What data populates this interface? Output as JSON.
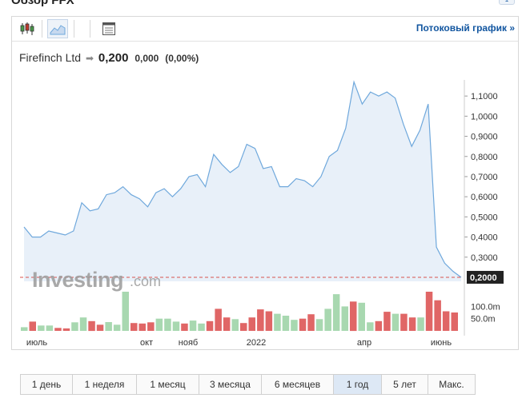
{
  "header": {
    "title_fragment": "Обзор FFX",
    "badge": "1"
  },
  "toolbar": {
    "icons": [
      "candlestick-icon",
      "area-chart-icon",
      "table-icon"
    ],
    "stream_link": "Потоковый график »"
  },
  "quote": {
    "name": "Firefinch Ltd",
    "arrow": "➡",
    "price": "0,200",
    "change": "0,000",
    "change_pct": "(0,00%)"
  },
  "watermark": {
    "brand": "Investing",
    "suffix": ".com"
  },
  "periods": [
    {
      "label": "1 день",
      "active": false
    },
    {
      "label": "1 неделя",
      "active": false
    },
    {
      "label": "1 месяц",
      "active": false
    },
    {
      "label": "3 месяца",
      "active": false
    },
    {
      "label": "6 месяцев",
      "active": false
    },
    {
      "label": "1 год",
      "active": true
    },
    {
      "label": "5 лет",
      "active": false
    },
    {
      "label": "Макс.",
      "active": false
    }
  ],
  "colors": {
    "line": "#6fa8dc",
    "area": "#e8f0f9",
    "volume_up": "#a8d8b0",
    "volume_down": "#e06666",
    "current_price_line": "#d9534f",
    "price_badge": "#222222",
    "link": "#1256a0"
  },
  "chart_data": {
    "type": "area",
    "title": "Firefinch Ltd",
    "x_tick_labels": [
      "июль",
      "окт",
      "нояб",
      "2022",
      "апр",
      "июнь"
    ],
    "y_ticks": [
      "1,1000",
      "1,0000",
      "0,9000",
      "0,8000",
      "0,7000",
      "0,6000",
      "0,5000",
      "0,4000",
      "0,3000"
    ],
    "ylim": [
      0.18,
      1.18
    ],
    "current_price_label": "0,2000",
    "current_price": 0.2,
    "price_series": [
      0.45,
      0.4,
      0.4,
      0.43,
      0.42,
      0.41,
      0.43,
      0.57,
      0.53,
      0.54,
      0.61,
      0.62,
      0.65,
      0.61,
      0.59,
      0.55,
      0.62,
      0.64,
      0.6,
      0.64,
      0.7,
      0.71,
      0.65,
      0.81,
      0.76,
      0.72,
      0.75,
      0.86,
      0.84,
      0.74,
      0.75,
      0.65,
      0.65,
      0.69,
      0.68,
      0.65,
      0.7,
      0.8,
      0.83,
      0.94,
      1.17,
      1.06,
      1.12,
      1.1,
      1.12,
      1.09,
      0.96,
      0.85,
      0.93,
      1.06,
      0.35,
      0.27,
      0.23,
      0.2
    ],
    "volume_ticks": [
      "100.0m",
      "50.0m"
    ],
    "volume_max": 160,
    "volume_series": [
      {
        "v": 15,
        "up": true
      },
      {
        "v": 38,
        "up": false
      },
      {
        "v": 22,
        "up": true
      },
      {
        "v": 22,
        "up": true
      },
      {
        "v": 12,
        "up": false
      },
      {
        "v": 10,
        "up": false
      },
      {
        "v": 35,
        "up": true
      },
      {
        "v": 55,
        "up": true
      },
      {
        "v": 40,
        "up": false
      },
      {
        "v": 25,
        "up": false
      },
      {
        "v": 36,
        "up": true
      },
      {
        "v": 25,
        "up": true
      },
      {
        "v": 160,
        "up": true
      },
      {
        "v": 32,
        "up": false
      },
      {
        "v": 30,
        "up": false
      },
      {
        "v": 35,
        "up": false
      },
      {
        "v": 50,
        "up": true
      },
      {
        "v": 50,
        "up": true
      },
      {
        "v": 38,
        "up": true
      },
      {
        "v": 30,
        "up": false
      },
      {
        "v": 42,
        "up": true
      },
      {
        "v": 30,
        "up": true
      },
      {
        "v": 40,
        "up": false
      },
      {
        "v": 90,
        "up": false
      },
      {
        "v": 55,
        "up": false
      },
      {
        "v": 48,
        "up": true
      },
      {
        "v": 32,
        "up": false
      },
      {
        "v": 55,
        "up": false
      },
      {
        "v": 88,
        "up": false
      },
      {
        "v": 80,
        "up": false
      },
      {
        "v": 70,
        "up": true
      },
      {
        "v": 62,
        "up": true
      },
      {
        "v": 45,
        "up": true
      },
      {
        "v": 50,
        "up": false
      },
      {
        "v": 68,
        "up": false
      },
      {
        "v": 48,
        "up": true
      },
      {
        "v": 90,
        "up": true
      },
      {
        "v": 150,
        "up": true
      },
      {
        "v": 100,
        "up": true
      },
      {
        "v": 120,
        "up": false
      },
      {
        "v": 115,
        "up": true
      },
      {
        "v": 35,
        "up": true
      },
      {
        "v": 40,
        "up": false
      },
      {
        "v": 78,
        "up": false
      },
      {
        "v": 70,
        "up": true
      },
      {
        "v": 70,
        "up": false
      },
      {
        "v": 55,
        "up": false
      },
      {
        "v": 55,
        "up": true
      },
      {
        "v": 160,
        "up": false
      },
      {
        "v": 125,
        "up": false
      },
      {
        "v": 80,
        "up": false
      },
      {
        "v": 75,
        "up": false
      }
    ]
  }
}
